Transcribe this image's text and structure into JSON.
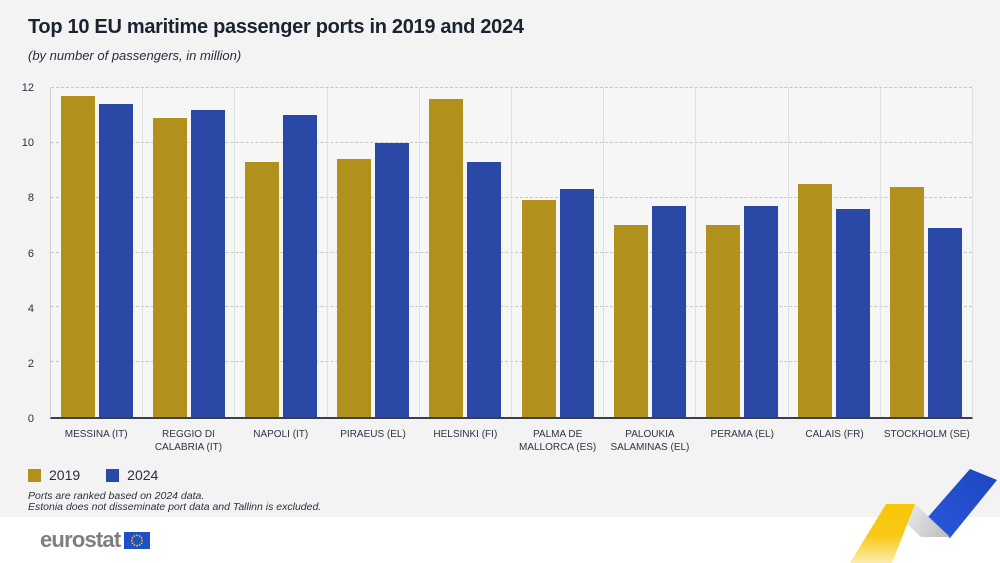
{
  "header": {
    "title": "Top 10 EU maritime passenger ports in 2019 and 2024",
    "subtitle": "(by number of passengers, in million)"
  },
  "chart_data": {
    "type": "bar",
    "categories": [
      "MESSINA (IT)",
      "REGGIO DI CALABRIA (IT)",
      "NAPOLI (IT)",
      "PIRAEUS (EL)",
      "HELSINKI (FI)",
      "PALMA DE MALLORCA (ES)",
      "PALOUKIA SALAMINAS (EL)",
      "PERAMA (EL)",
      "CALAIS (FR)",
      "STOCKHOLM (SE)"
    ],
    "series": [
      {
        "name": "2019",
        "color": "#b1911c",
        "values": [
          11.7,
          10.9,
          9.3,
          9.4,
          11.6,
          7.9,
          7.0,
          7.0,
          8.5,
          8.4
        ]
      },
      {
        "name": "2024",
        "color": "#2a49a7",
        "values": [
          11.4,
          11.2,
          11.0,
          10.0,
          9.3,
          8.3,
          7.7,
          7.7,
          7.6,
          6.9
        ]
      }
    ],
    "title": "Top 10 EU maritime passenger ports in 2019 and 2024",
    "xlabel": "",
    "ylabel": "",
    "ylim": [
      0,
      12
    ],
    "yticks": [
      0,
      2,
      4,
      6,
      8,
      10,
      12
    ],
    "grid": "horizontal-dashed",
    "legend_position": "bottom-left"
  },
  "footnotes": [
    "Ports are ranked based on 2024 data.",
    "Estonia does not disseminate port data and Tallinn is excluded."
  ],
  "footer": {
    "logo_text": "eurostat"
  },
  "colors": {
    "gold": "#b1911c",
    "blue": "#2a49a7",
    "background": "#f3f3f3",
    "plot_background": "#f6f6f6",
    "axis": "#3a3f4b",
    "grid": "#c6c6c6",
    "logo_gray": "#7f7f7f",
    "flag_blue": "#1e50c8",
    "star_yellow": "#ffcc00",
    "ribbon_yellow": "#f8c505",
    "ribbon_blue": "#2150d0"
  }
}
